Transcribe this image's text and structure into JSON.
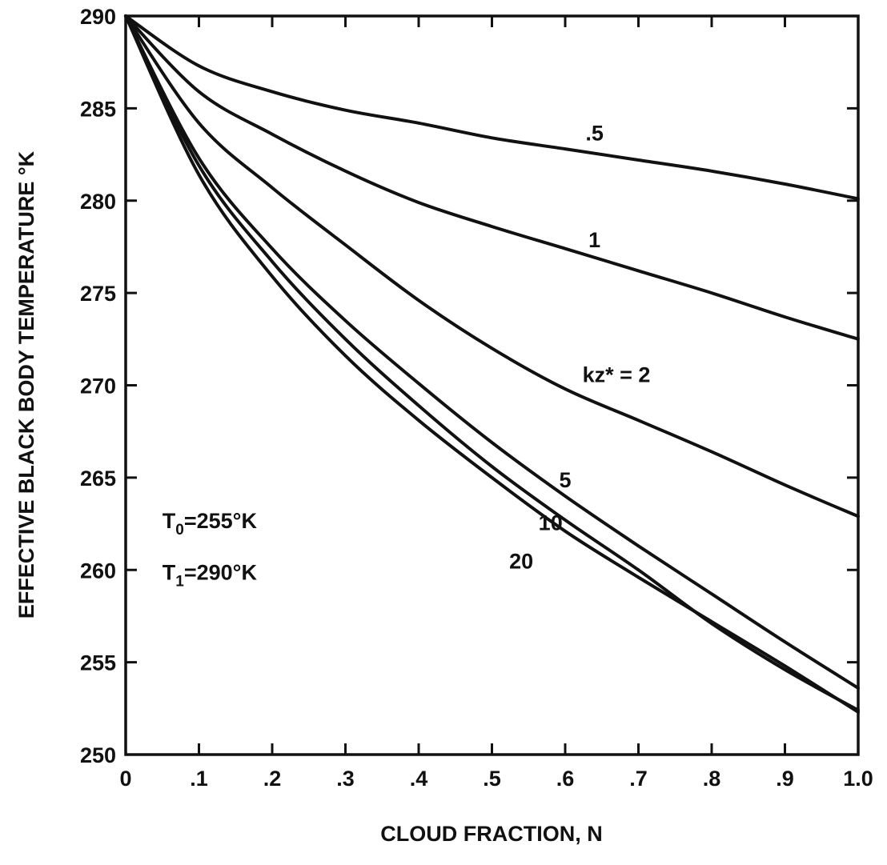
{
  "chart_data": {
    "type": "line",
    "title": "",
    "xlabel": "CLOUD FRACTION, N",
    "ylabel": "EFFECTIVE BLACK BODY TEMPERATURE °K",
    "xlim": [
      0,
      1.0
    ],
    "ylim": [
      250,
      290
    ],
    "grid": false,
    "x_ticks": [
      0,
      0.1,
      0.2,
      0.3,
      0.4,
      0.5,
      0.6,
      0.7,
      0.8,
      0.9,
      1.0
    ],
    "x_tick_labels": [
      "0",
      ".1",
      ".2",
      ".3",
      ".4",
      ".5",
      ".6",
      ".7",
      ".8",
      ".9",
      "1.0"
    ],
    "y_ticks": [
      250,
      255,
      260,
      265,
      270,
      275,
      280,
      285,
      290
    ],
    "y_tick_labels": [
      "250",
      "255",
      "260",
      "265",
      "270",
      "275",
      "280",
      "285",
      "290"
    ],
    "x": [
      0,
      0.1,
      0.2,
      0.3,
      0.4,
      0.5,
      0.6,
      0.7,
      0.8,
      0.9,
      1.0
    ],
    "series": [
      {
        "label": ".5",
        "label_at": [
          0.64,
          283.7
        ],
        "values": [
          290,
          287.3,
          285.9,
          284.9,
          284.2,
          283.4,
          282.8,
          282.2,
          281.6,
          280.9,
          280.1
        ]
      },
      {
        "label": "1",
        "label_at": [
          0.64,
          277.9
        ],
        "values": [
          290,
          285.9,
          283.6,
          281.6,
          279.9,
          278.6,
          277.4,
          276.2,
          275.0,
          273.7,
          272.5
        ]
      },
      {
        "label": "kz* = 2",
        "label_at": [
          0.67,
          270.6
        ],
        "values": [
          290,
          284.2,
          280.7,
          277.6,
          274.6,
          272.0,
          269.8,
          268.1,
          266.4,
          264.6,
          262.9
        ]
      },
      {
        "label": "5",
        "label_at": [
          0.6,
          264.9
        ],
        "values": [
          290,
          282.3,
          277.4,
          273.5,
          270.1,
          266.9,
          264.0,
          261.3,
          258.7,
          256.1,
          253.6
        ]
      },
      {
        "label": "10",
        "label_at": [
          0.58,
          262.6
        ],
        "values": [
          290,
          281.9,
          276.7,
          272.5,
          268.9,
          265.6,
          262.7,
          260.0,
          257.1,
          254.6,
          252.4
        ]
      },
      {
        "label": "20",
        "label_at": [
          0.54,
          260.5
        ],
        "values": [
          290,
          281.4,
          275.9,
          271.6,
          268.1,
          265.0,
          262.1,
          259.6,
          257.2,
          254.8,
          252.3
        ]
      }
    ],
    "annotations": [
      {
        "id": "t0",
        "base": "T",
        "sub": "0",
        "rest": "=255°K",
        "at": [
          0.05,
          262.7
        ]
      },
      {
        "id": "t1",
        "base": "T",
        "sub": "1",
        "rest": "=290°K",
        "at": [
          0.05,
          259.9
        ]
      }
    ]
  }
}
